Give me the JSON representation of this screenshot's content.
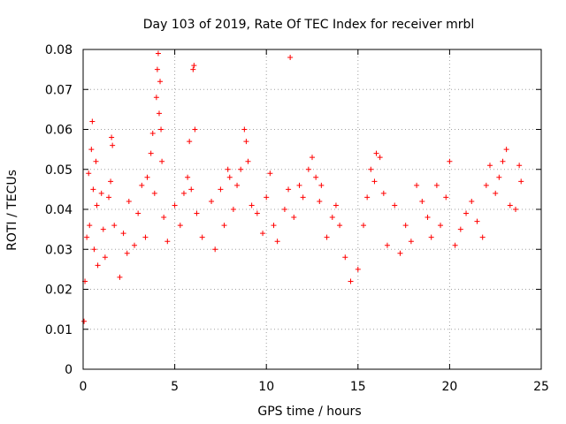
{
  "chart_data": {
    "type": "scatter",
    "title": "Day 103 of 2019, Rate Of TEC Index for receiver mrbl",
    "xlabel": "GPS time / hours",
    "ylabel": "ROTI / TECUs",
    "xlim": [
      0,
      25
    ],
    "ylim": [
      0,
      0.08
    ],
    "xticks": [
      "0",
      "5",
      "10",
      "15",
      "20",
      "25"
    ],
    "yticks": [
      "0",
      "0.01",
      "0.02",
      "0.03",
      "0.04",
      "0.05",
      "0.06",
      "0.07",
      "0.08"
    ],
    "grid": true,
    "marker": "plus",
    "color": "#ff0000",
    "series": [
      {
        "name": "",
        "points": [
          [
            0.05,
            0.012
          ],
          [
            0.1,
            0.022
          ],
          [
            0.2,
            0.033
          ],
          [
            0.3,
            0.049
          ],
          [
            0.35,
            0.036
          ],
          [
            0.45,
            0.055
          ],
          [
            0.5,
            0.062
          ],
          [
            0.55,
            0.045
          ],
          [
            0.6,
            0.03
          ],
          [
            0.7,
            0.052
          ],
          [
            0.75,
            0.041
          ],
          [
            0.8,
            0.026
          ],
          [
            1.0,
            0.044
          ],
          [
            1.1,
            0.035
          ],
          [
            1.2,
            0.028
          ],
          [
            1.4,
            0.043
          ],
          [
            1.5,
            0.047
          ],
          [
            1.55,
            0.058
          ],
          [
            1.6,
            0.056
          ],
          [
            1.7,
            0.036
          ],
          [
            2.0,
            0.023
          ],
          [
            2.2,
            0.034
          ],
          [
            2.4,
            0.029
          ],
          [
            2.5,
            0.042
          ],
          [
            2.8,
            0.031
          ],
          [
            3.0,
            0.039
          ],
          [
            3.2,
            0.046
          ],
          [
            3.4,
            0.033
          ],
          [
            3.5,
            0.048
          ],
          [
            3.7,
            0.054
          ],
          [
            3.8,
            0.059
          ],
          [
            3.9,
            0.044
          ],
          [
            4.0,
            0.068
          ],
          [
            4.05,
            0.075
          ],
          [
            4.1,
            0.079
          ],
          [
            4.15,
            0.064
          ],
          [
            4.2,
            0.072
          ],
          [
            4.25,
            0.06
          ],
          [
            4.3,
            0.052
          ],
          [
            4.4,
            0.038
          ],
          [
            4.6,
            0.032
          ],
          [
            5.0,
            0.041
          ],
          [
            5.3,
            0.036
          ],
          [
            5.5,
            0.044
          ],
          [
            5.7,
            0.048
          ],
          [
            5.8,
            0.057
          ],
          [
            5.9,
            0.045
          ],
          [
            6.0,
            0.075
          ],
          [
            6.05,
            0.076
          ],
          [
            6.1,
            0.06
          ],
          [
            6.2,
            0.039
          ],
          [
            6.5,
            0.033
          ],
          [
            7.0,
            0.042
          ],
          [
            7.2,
            0.03
          ],
          [
            7.5,
            0.045
          ],
          [
            7.7,
            0.036
          ],
          [
            7.9,
            0.05
          ],
          [
            8.0,
            0.048
          ],
          [
            8.2,
            0.04
          ],
          [
            8.4,
            0.046
          ],
          [
            8.6,
            0.05
          ],
          [
            8.8,
            0.06
          ],
          [
            8.9,
            0.057
          ],
          [
            9.0,
            0.052
          ],
          [
            9.2,
            0.041
          ],
          [
            9.5,
            0.039
          ],
          [
            9.8,
            0.034
          ],
          [
            10.0,
            0.043
          ],
          [
            10.2,
            0.049
          ],
          [
            10.4,
            0.036
          ],
          [
            10.6,
            0.032
          ],
          [
            11.0,
            0.04
          ],
          [
            11.2,
            0.045
          ],
          [
            11.3,
            0.078
          ],
          [
            11.5,
            0.038
          ],
          [
            11.8,
            0.046
          ],
          [
            12.0,
            0.043
          ],
          [
            12.3,
            0.05
          ],
          [
            12.5,
            0.053
          ],
          [
            12.7,
            0.048
          ],
          [
            12.9,
            0.042
          ],
          [
            13.0,
            0.046
          ],
          [
            13.3,
            0.033
          ],
          [
            13.6,
            0.038
          ],
          [
            13.8,
            0.041
          ],
          [
            14.0,
            0.036
          ],
          [
            14.3,
            0.028
          ],
          [
            14.6,
            0.022
          ],
          [
            15.0,
            0.025
          ],
          [
            15.3,
            0.036
          ],
          [
            15.5,
            0.043
          ],
          [
            15.7,
            0.05
          ],
          [
            15.9,
            0.047
          ],
          [
            16.0,
            0.054
          ],
          [
            16.2,
            0.053
          ],
          [
            16.4,
            0.044
          ],
          [
            16.6,
            0.031
          ],
          [
            17.0,
            0.041
          ],
          [
            17.3,
            0.029
          ],
          [
            17.6,
            0.036
          ],
          [
            17.9,
            0.032
          ],
          [
            18.2,
            0.046
          ],
          [
            18.5,
            0.042
          ],
          [
            18.8,
            0.038
          ],
          [
            19.0,
            0.033
          ],
          [
            19.3,
            0.046
          ],
          [
            19.5,
            0.036
          ],
          [
            19.8,
            0.043
          ],
          [
            20.0,
            0.052
          ],
          [
            20.3,
            0.031
          ],
          [
            20.6,
            0.035
          ],
          [
            20.9,
            0.039
          ],
          [
            21.2,
            0.042
          ],
          [
            21.5,
            0.037
          ],
          [
            21.8,
            0.033
          ],
          [
            22.0,
            0.046
          ],
          [
            22.2,
            0.051
          ],
          [
            22.5,
            0.044
          ],
          [
            22.7,
            0.048
          ],
          [
            22.9,
            0.052
          ],
          [
            23.1,
            0.055
          ],
          [
            23.3,
            0.041
          ],
          [
            23.6,
            0.04
          ],
          [
            23.8,
            0.051
          ],
          [
            23.9,
            0.047
          ]
        ]
      }
    ]
  }
}
